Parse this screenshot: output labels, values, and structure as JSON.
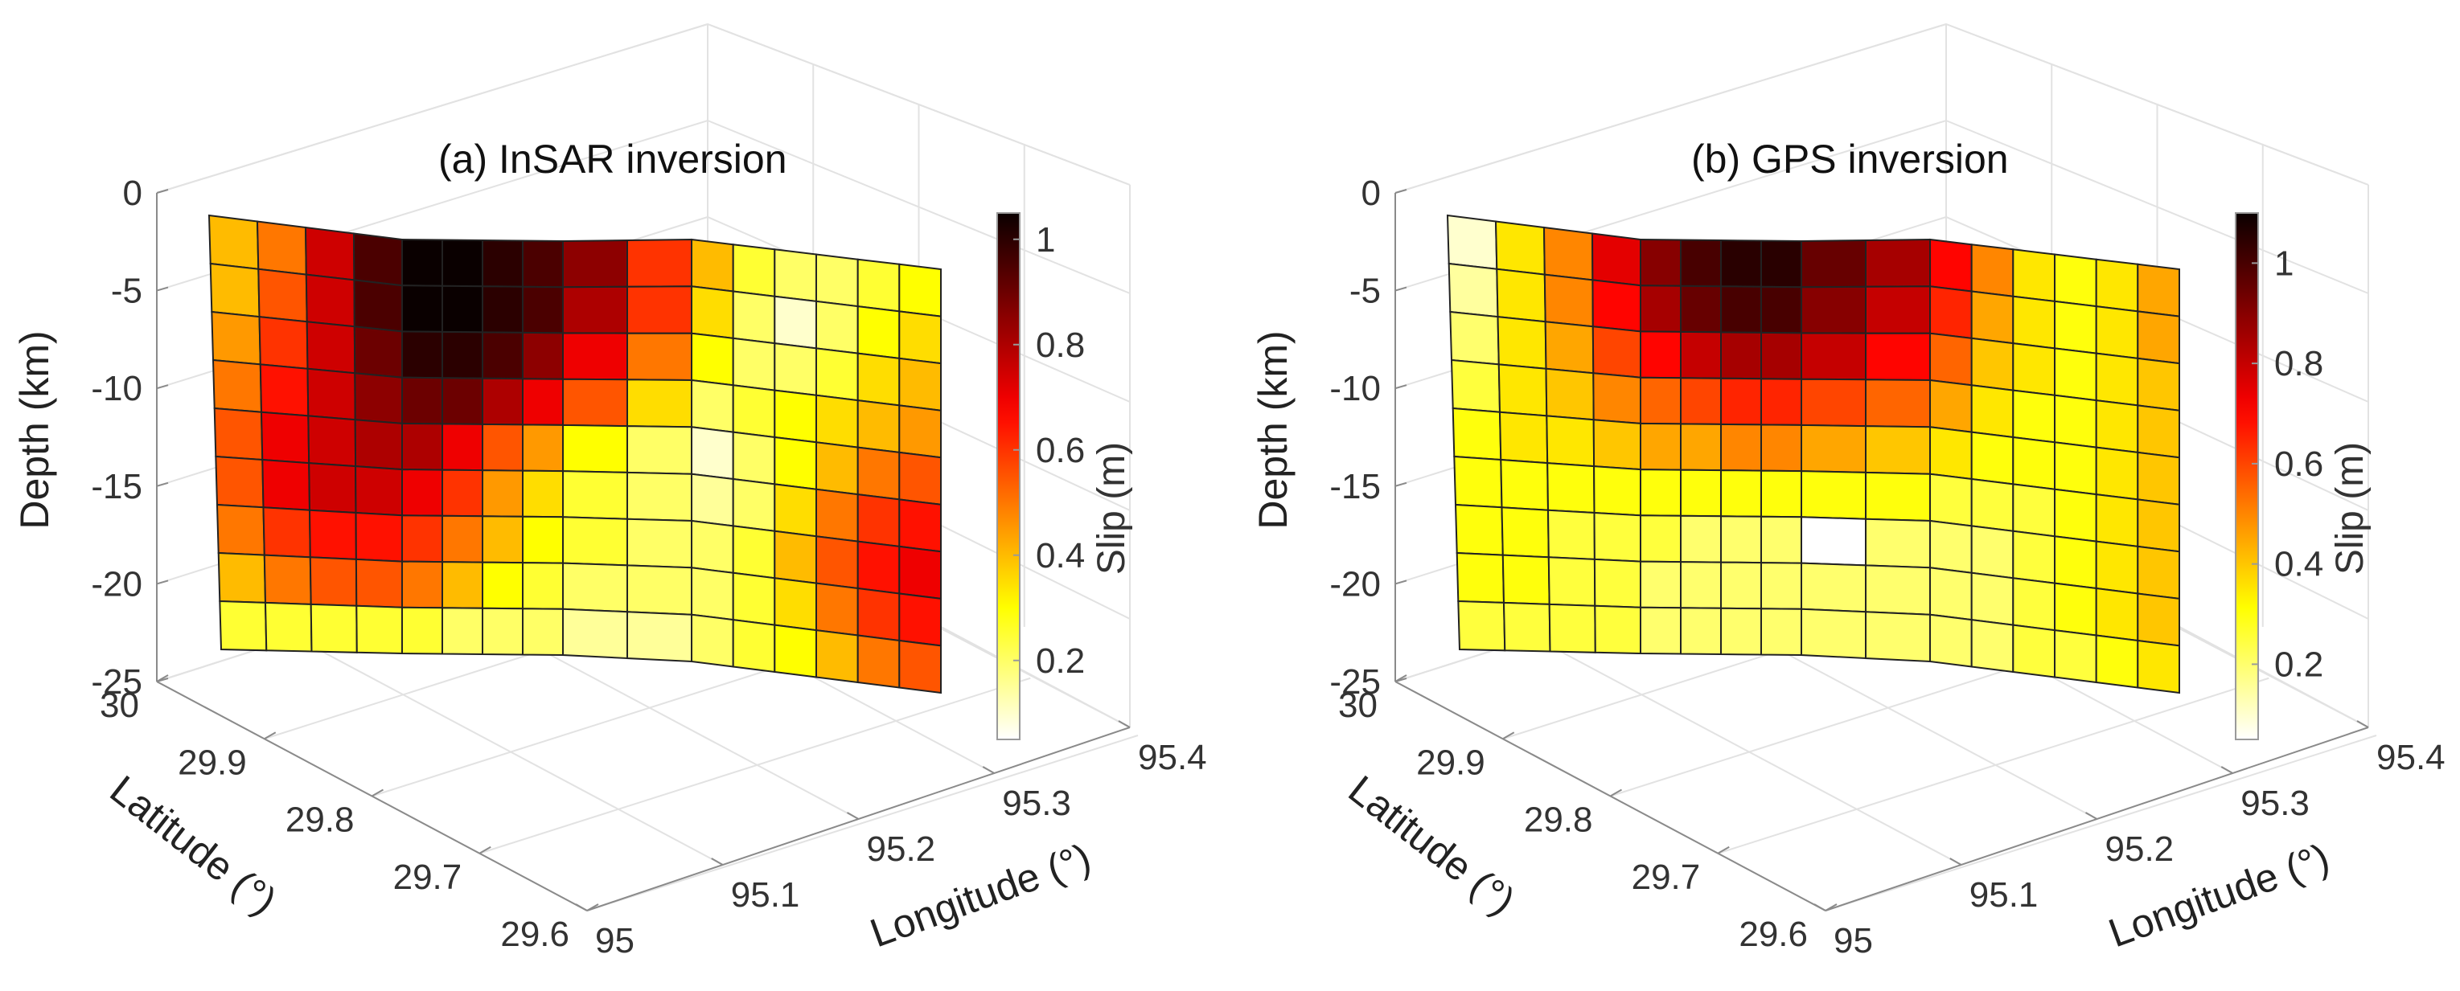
{
  "chart_data": [
    {
      "type": "heatmap",
      "title": "(a) InSAR inversion",
      "zlabel": "Depth (km)",
      "ylabel": "Latitude  (°)",
      "xlabel": "Longitude  (°)",
      "z_ticks": [
        0,
        -5,
        -10,
        -15,
        -20,
        -25
      ],
      "lat_ticks": [
        30,
        29.9,
        29.8,
        29.7,
        29.6
      ],
      "lon_ticks": [
        95,
        95.1,
        95.2,
        95.3,
        95.4
      ],
      "colorbar": {
        "label": "Slip (m)",
        "ticks": [
          0.2,
          0.4,
          0.6,
          0.8,
          1
        ],
        "range": [
          0.05,
          1.05
        ],
        "colormap": "hot (reversed)"
      },
      "slip_m": [
        [
          0.4,
          0.5,
          0.75,
          0.95,
          1.05,
          1.05,
          1.0,
          0.95,
          0.85,
          0.6,
          0.4,
          0.25,
          0.2,
          0.2,
          0.25,
          0.3
        ],
        [
          0.4,
          0.55,
          0.75,
          0.95,
          1.05,
          1.05,
          1.0,
          0.95,
          0.8,
          0.6,
          0.35,
          0.2,
          0.1,
          0.2,
          0.3,
          0.35
        ],
        [
          0.45,
          0.6,
          0.75,
          0.9,
          1.0,
          1.0,
          0.95,
          0.85,
          0.7,
          0.5,
          0.3,
          0.2,
          0.2,
          0.25,
          0.35,
          0.4
        ],
        [
          0.5,
          0.65,
          0.75,
          0.85,
          0.9,
          0.9,
          0.8,
          0.7,
          0.55,
          0.35,
          0.2,
          0.25,
          0.3,
          0.35,
          0.4,
          0.45
        ],
        [
          0.55,
          0.7,
          0.75,
          0.8,
          0.8,
          0.7,
          0.55,
          0.45,
          0.3,
          0.2,
          0.1,
          0.2,
          0.3,
          0.4,
          0.5,
          0.55
        ],
        [
          0.55,
          0.7,
          0.75,
          0.75,
          0.7,
          0.6,
          0.45,
          0.35,
          0.25,
          0.2,
          0.15,
          0.2,
          0.35,
          0.5,
          0.6,
          0.65
        ],
        [
          0.5,
          0.6,
          0.65,
          0.65,
          0.6,
          0.5,
          0.4,
          0.3,
          0.25,
          0.2,
          0.2,
          0.25,
          0.4,
          0.55,
          0.65,
          0.7
        ],
        [
          0.4,
          0.5,
          0.55,
          0.55,
          0.5,
          0.4,
          0.3,
          0.25,
          0.2,
          0.2,
          0.2,
          0.25,
          0.35,
          0.5,
          0.6,
          0.65
        ],
        [
          0.25,
          0.25,
          0.25,
          0.25,
          0.25,
          0.2,
          0.2,
          0.2,
          0.15,
          0.15,
          0.2,
          0.25,
          0.3,
          0.4,
          0.5,
          0.55
        ]
      ]
    },
    {
      "type": "heatmap",
      "title": "(b) GPS inversion",
      "zlabel": "Depth (km)",
      "ylabel": "Latitude  (°)",
      "xlabel": "Longitude  (°)",
      "z_ticks": [
        0,
        -5,
        -10,
        -15,
        -20,
        -25
      ],
      "lat_ticks": [
        30,
        29.9,
        29.8,
        29.7,
        29.6
      ],
      "lon_ticks": [
        95,
        95.1,
        95.2,
        95.3,
        95.4
      ],
      "colorbar": {
        "label": "Slip (m)",
        "ticks": [
          0.2,
          0.4,
          0.6,
          0.8,
          1
        ],
        "range": [
          0.05,
          1.1
        ],
        "colormap": "hot (reversed)"
      },
      "slip_m": [
        [
          0.1,
          0.35,
          0.5,
          0.75,
          0.9,
          1.0,
          1.05,
          1.05,
          0.95,
          0.85,
          0.7,
          0.5,
          0.35,
          0.3,
          0.35,
          0.45
        ],
        [
          0.15,
          0.35,
          0.5,
          0.7,
          0.85,
          0.95,
          1.0,
          1.0,
          0.9,
          0.8,
          0.65,
          0.45,
          0.35,
          0.3,
          0.35,
          0.45
        ],
        [
          0.2,
          0.35,
          0.45,
          0.6,
          0.7,
          0.8,
          0.85,
          0.85,
          0.8,
          0.7,
          0.55,
          0.4,
          0.35,
          0.3,
          0.35,
          0.4
        ],
        [
          0.25,
          0.35,
          0.4,
          0.5,
          0.55,
          0.6,
          0.65,
          0.65,
          0.6,
          0.55,
          0.45,
          0.35,
          0.3,
          0.3,
          0.35,
          0.4
        ],
        [
          0.3,
          0.35,
          0.35,
          0.4,
          0.45,
          0.45,
          0.5,
          0.5,
          0.45,
          0.4,
          0.35,
          0.3,
          0.3,
          0.3,
          0.35,
          0.4
        ],
        [
          0.3,
          0.3,
          0.3,
          0.3,
          0.3,
          0.3,
          0.3,
          0.3,
          0.3,
          0.3,
          0.25,
          0.25,
          0.25,
          0.3,
          0.35,
          0.4
        ],
        [
          0.3,
          0.3,
          0.25,
          0.25,
          0.25,
          0.2,
          0.2,
          0.2,
          0.05,
          0.2,
          0.2,
          0.2,
          0.25,
          0.3,
          0.35,
          0.4
        ],
        [
          0.3,
          0.3,
          0.25,
          0.25,
          0.2,
          0.2,
          0.2,
          0.2,
          0.2,
          0.2,
          0.2,
          0.2,
          0.25,
          0.3,
          0.35,
          0.4
        ],
        [
          0.25,
          0.25,
          0.25,
          0.25,
          0.2,
          0.2,
          0.2,
          0.2,
          0.2,
          0.2,
          0.2,
          0.2,
          0.25,
          0.25,
          0.3,
          0.35
        ]
      ]
    }
  ]
}
